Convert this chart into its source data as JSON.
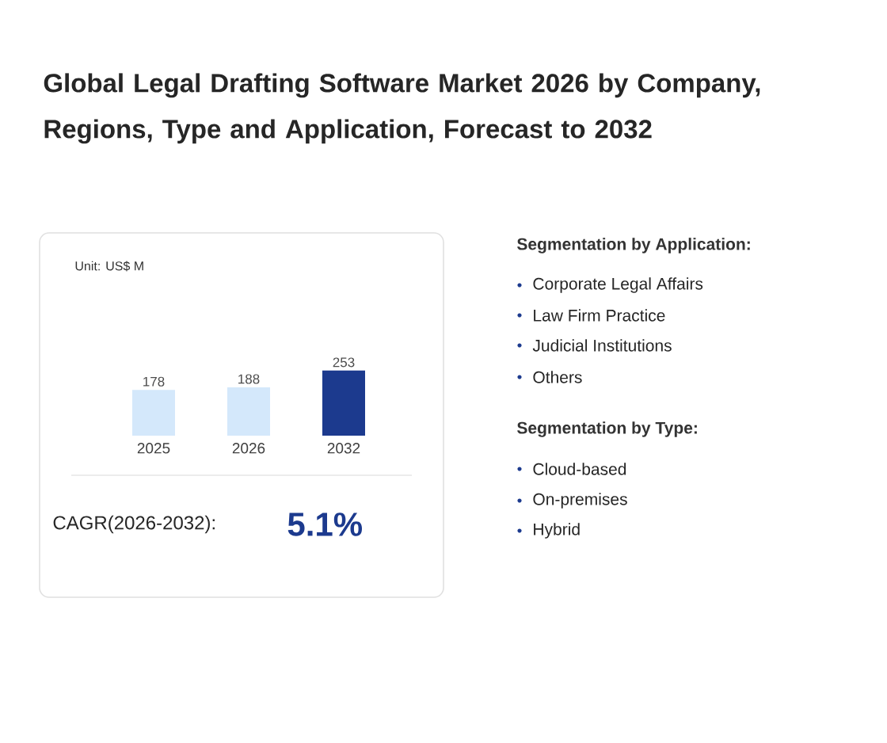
{
  "chart_data": {
    "type": "bar",
    "title": "Global Legal Drafting Software Market 2026 by Company, Regions, Type and Application, Forecast to 2032",
    "subtitle": "Unit: US$ M",
    "categories": [
      "2025",
      "2026",
      "2032"
    ],
    "values": [
      178,
      188,
      253
    ],
    "colors": [
      "#d4e8fb",
      "#d4e8fb",
      "#1c3a8e"
    ],
    "data_labels": true,
    "annotations": [
      "CAGR(2026-2032):",
      "5.1%",
      "Segmentation by Application:",
      "Corporate Legal Affairs",
      "Law Firm Practice",
      "Judicial Institutions",
      "Others",
      "Segmentation by Type:",
      "Cloud-based",
      "On-premises",
      "Hybrid"
    ]
  }
}
